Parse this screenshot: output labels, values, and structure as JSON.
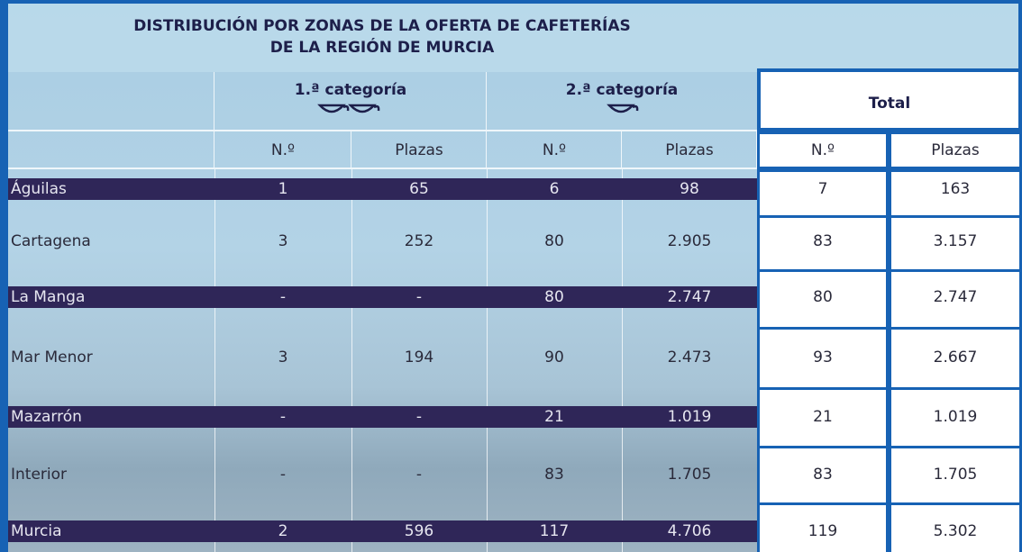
{
  "title_lines": [
    "DISTRIBUCIÓN POR ZONAS DE LA OFERTA DE CAFETERÍAS",
    "DE LA REGIÓN DE MURCIA"
  ],
  "table": {
    "groups": [
      "1.ª categoría",
      "2.ª categoría",
      "Total"
    ],
    "subheaders": [
      "N.º",
      "Plazas",
      "N.º",
      "Plazas",
      "N.º",
      "Plazas"
    ],
    "rows": [
      [
        "Águilas",
        "1",
        "65",
        "6",
        "98",
        "7",
        "163"
      ],
      [
        "Cartagena",
        "3",
        "252",
        "80",
        "2.905",
        "83",
        "3.157"
      ],
      [
        "La Manga",
        "-",
        "-",
        "80",
        "2.747",
        "80",
        "2.747"
      ],
      [
        "Mar Menor",
        "3",
        "194",
        "90",
        "2.473",
        "93",
        "2.667"
      ],
      [
        "Mazarrón",
        "-",
        "-",
        "21",
        "1.019",
        "21",
        "1.019"
      ],
      [
        "Interior",
        "-",
        "-",
        "83",
        "1.705",
        "83",
        "1.705"
      ],
      [
        "Murcia",
        "2",
        "596",
        "117",
        "4.706",
        "119",
        "5.302"
      ]
    ]
  }
}
